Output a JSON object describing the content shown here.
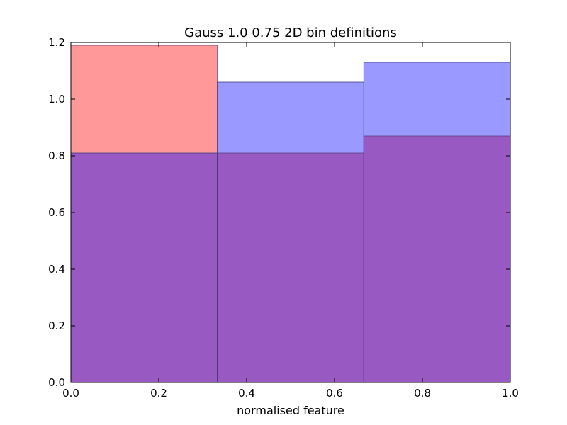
{
  "chart_data": {
    "type": "bar",
    "title": "Gauss 1.0 0.75 2D bin definitions",
    "xlabel": "normalised feature",
    "ylabel": "",
    "xlim": [
      0.0,
      1.0
    ],
    "ylim": [
      0.0,
      1.2
    ],
    "grid": false,
    "bin_edges": [
      0.0,
      0.3333,
      0.6667,
      1.0
    ],
    "series": [
      {
        "color": "#ff9999",
        "values": [
          1.19,
          0.81,
          0.87
        ]
      },
      {
        "color": "#9999ff",
        "values": [
          0.81,
          1.06,
          1.13
        ]
      }
    ],
    "overlap_color": "#9959c2",
    "x_ticks": [
      {
        "value": 0.0,
        "label": "0.0"
      },
      {
        "value": 0.2,
        "label": "0.2"
      },
      {
        "value": 0.4,
        "label": "0.4"
      },
      {
        "value": 0.6,
        "label": "0.6"
      },
      {
        "value": 0.8,
        "label": "0.8"
      },
      {
        "value": 1.0,
        "label": "1.0"
      }
    ],
    "y_ticks": [
      {
        "value": 0.0,
        "label": "0.0"
      },
      {
        "value": 0.2,
        "label": "0.2"
      },
      {
        "value": 0.4,
        "label": "0.4"
      },
      {
        "value": 0.6,
        "label": "0.6"
      },
      {
        "value": 0.8,
        "label": "0.8"
      },
      {
        "value": 1.0,
        "label": "1.0"
      },
      {
        "value": 1.2,
        "label": "1.2"
      }
    ]
  }
}
